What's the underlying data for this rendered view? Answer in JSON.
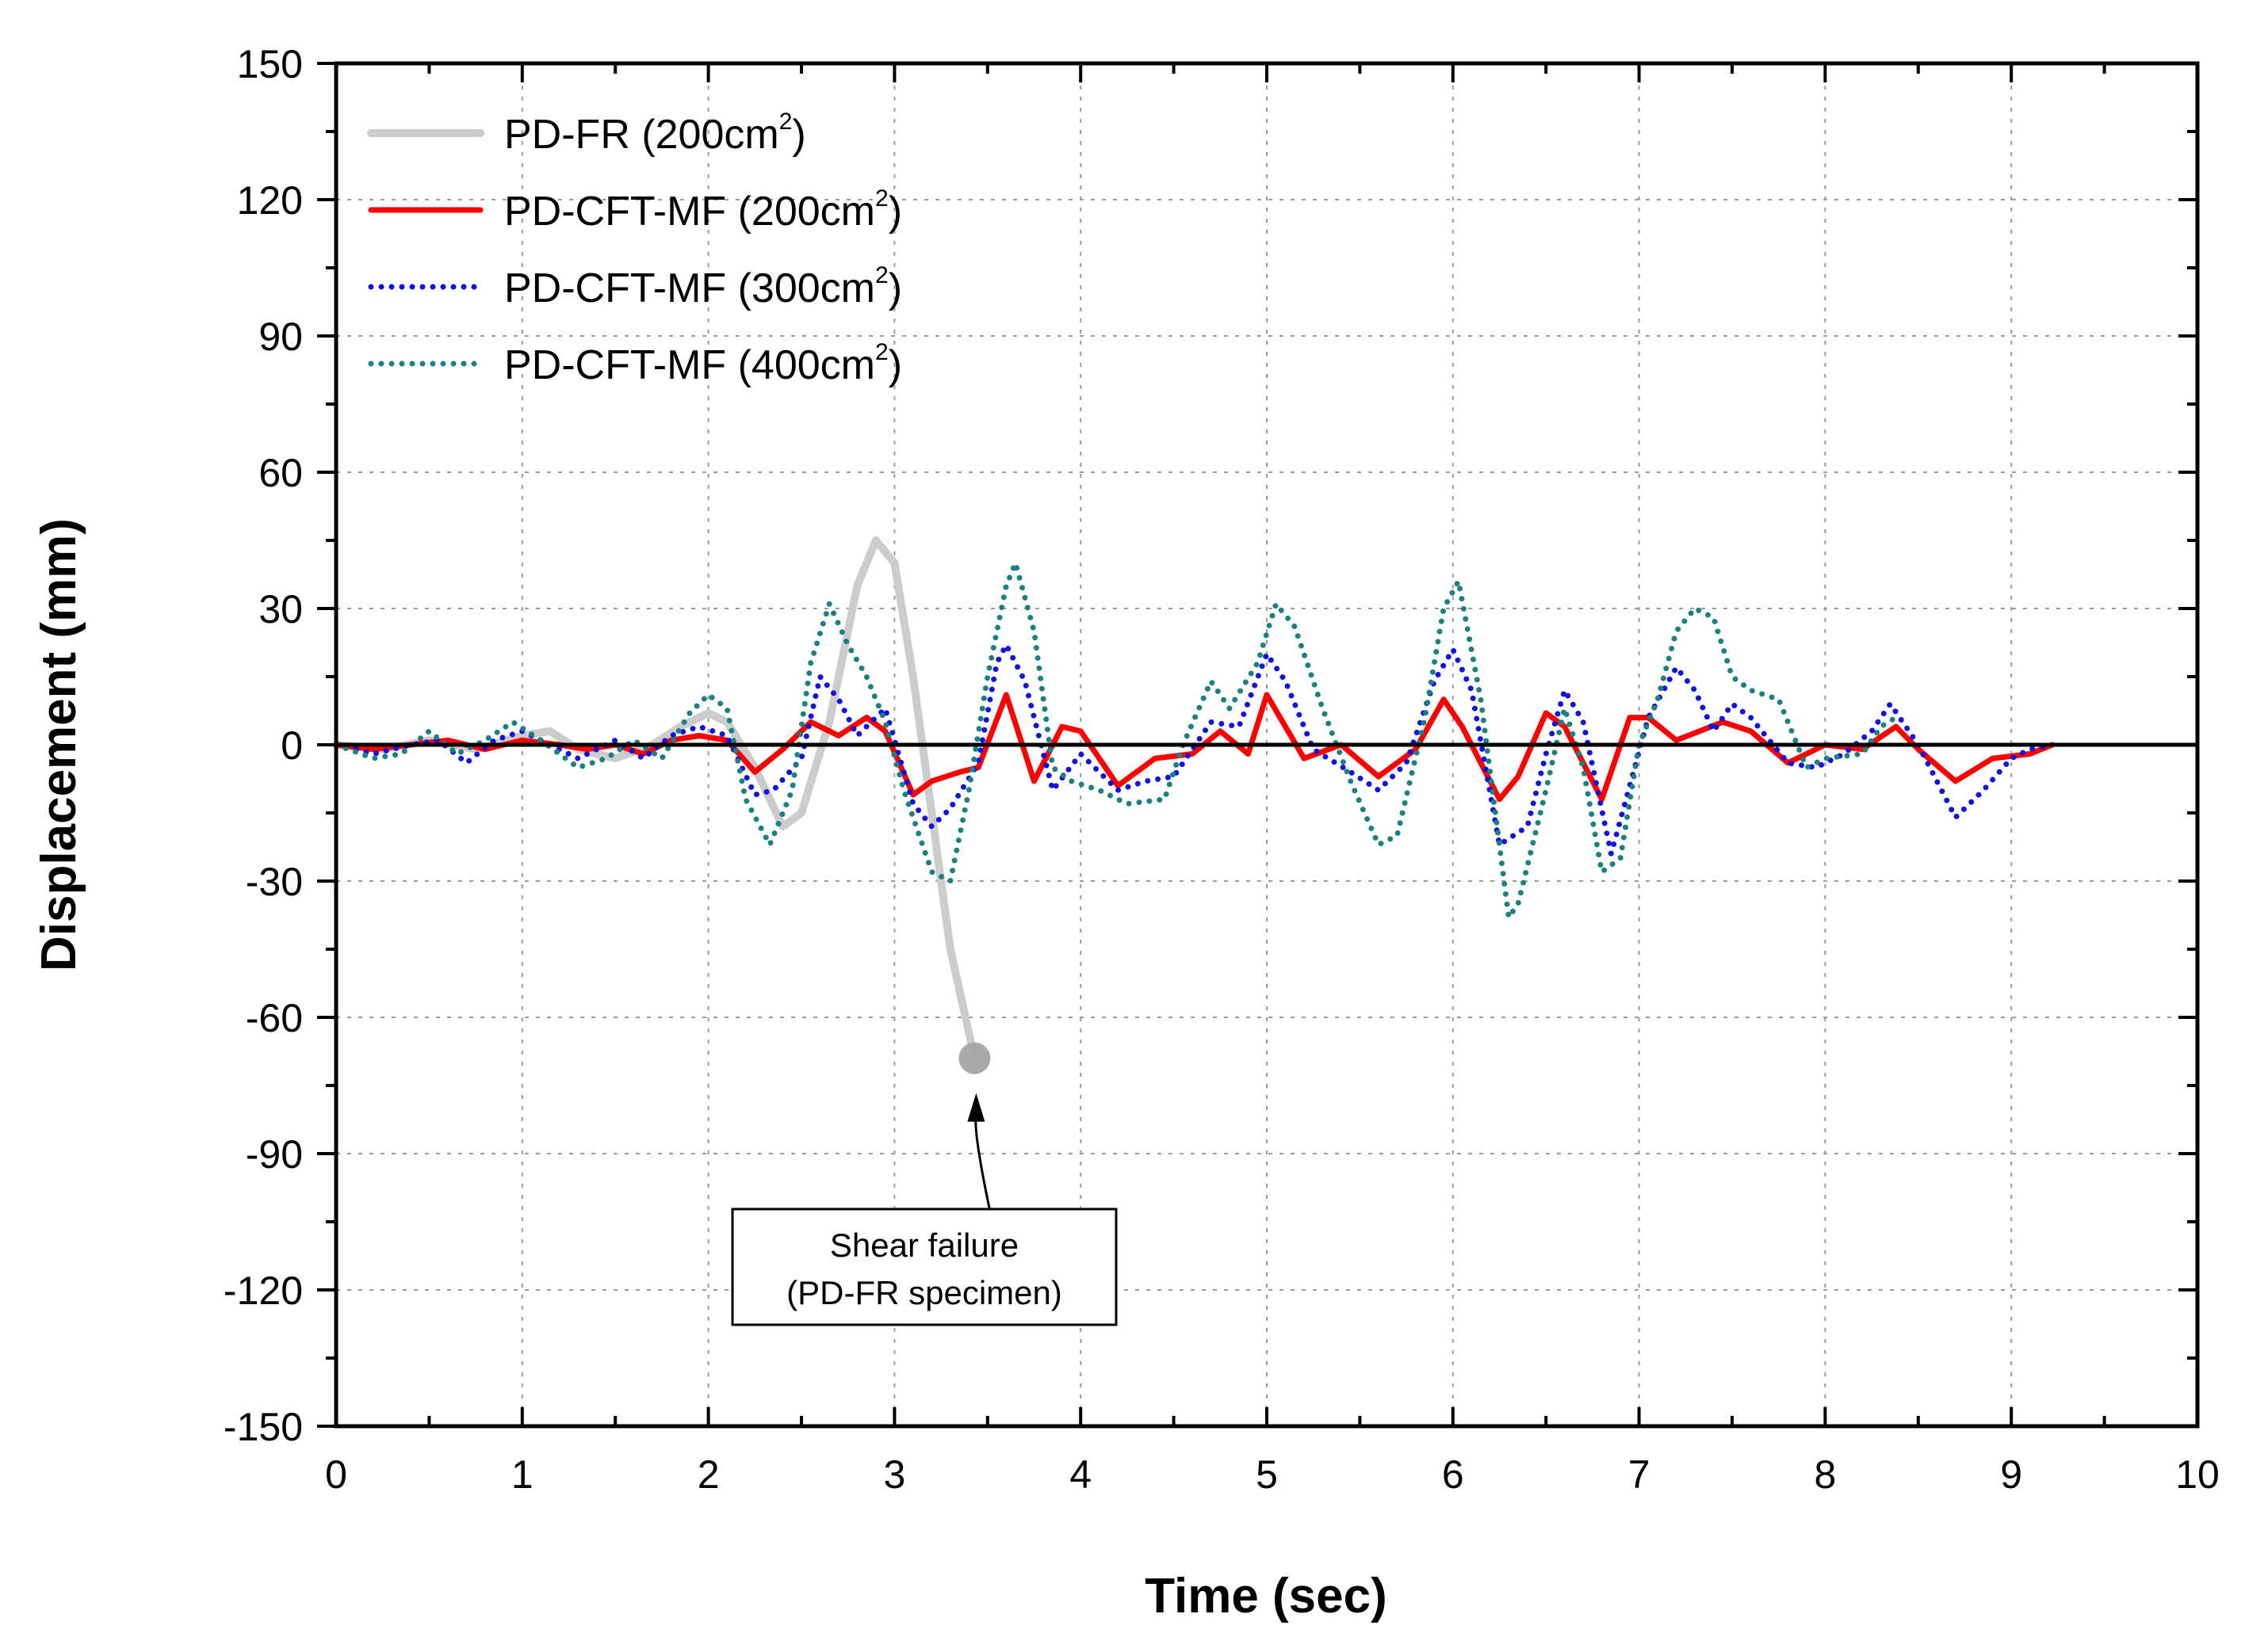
{
  "chart_data": {
    "type": "line",
    "title": "",
    "xlabel": "Time (sec)",
    "ylabel": "Displacement (mm)",
    "xlim": [
      0,
      10
    ],
    "ylim": [
      -150,
      150
    ],
    "x_ticks": [
      "0",
      "1",
      "2",
      "3",
      "4",
      "5",
      "6",
      "7",
      "8",
      "9",
      "10"
    ],
    "y_ticks": [
      "150",
      "120",
      "90",
      "60",
      "30",
      "0",
      "-30",
      "-60",
      "-90",
      "-120",
      "-150"
    ],
    "grid": true,
    "legend_position": "top-left",
    "series": [
      {
        "name": "PD-FR (200cm",
        "name_sup": "2",
        "name_suffix": ")",
        "color": "#cccccc",
        "style": "solid",
        "points": [
          [
            0,
            0
          ],
          [
            0.25,
            -1
          ],
          [
            0.5,
            1
          ],
          [
            0.75,
            -1
          ],
          [
            1.0,
            2
          ],
          [
            1.15,
            3
          ],
          [
            1.3,
            -1
          ],
          [
            1.5,
            -3
          ],
          [
            1.7,
            0
          ],
          [
            1.85,
            4
          ],
          [
            2.0,
            7
          ],
          [
            2.1,
            5
          ],
          [
            2.25,
            -5
          ],
          [
            2.4,
            -18
          ],
          [
            2.5,
            -15
          ],
          [
            2.65,
            5
          ],
          [
            2.8,
            35
          ],
          [
            2.9,
            45
          ],
          [
            3.0,
            40
          ],
          [
            3.1,
            15
          ],
          [
            3.2,
            -15
          ],
          [
            3.3,
            -45
          ],
          [
            3.43,
            -69
          ]
        ]
      },
      {
        "name": "PD-CFT-MF (200cm",
        "name_sup": "2",
        "name_suffix": ")",
        "color": "#ff0000",
        "style": "solid",
        "points": [
          [
            0,
            0
          ],
          [
            0.2,
            -1
          ],
          [
            0.4,
            0
          ],
          [
            0.6,
            1
          ],
          [
            0.8,
            -1
          ],
          [
            1.0,
            1
          ],
          [
            1.2,
            0
          ],
          [
            1.35,
            -1
          ],
          [
            1.5,
            0
          ],
          [
            1.65,
            -2
          ],
          [
            1.8,
            1
          ],
          [
            1.95,
            2
          ],
          [
            2.1,
            1
          ],
          [
            2.25,
            -6
          ],
          [
            2.4,
            -1
          ],
          [
            2.55,
            5
          ],
          [
            2.7,
            2
          ],
          [
            2.85,
            6
          ],
          [
            2.95,
            3
          ],
          [
            3.1,
            -11
          ],
          [
            3.2,
            -8
          ],
          [
            3.35,
            -6
          ],
          [
            3.45,
            -5
          ],
          [
            3.6,
            11
          ],
          [
            3.75,
            -8
          ],
          [
            3.9,
            4
          ],
          [
            4.0,
            3
          ],
          [
            4.2,
            -9
          ],
          [
            4.4,
            -3
          ],
          [
            4.6,
            -2
          ],
          [
            4.75,
            3
          ],
          [
            4.9,
            -2
          ],
          [
            5.0,
            11
          ],
          [
            5.2,
            -3
          ],
          [
            5.4,
            0
          ],
          [
            5.6,
            -7
          ],
          [
            5.8,
            -1
          ],
          [
            5.95,
            10
          ],
          [
            6.05,
            4
          ],
          [
            6.25,
            -12
          ],
          [
            6.35,
            -7
          ],
          [
            6.5,
            7
          ],
          [
            6.6,
            4
          ],
          [
            6.8,
            -12
          ],
          [
            6.95,
            6
          ],
          [
            7.05,
            6
          ],
          [
            7.2,
            1
          ],
          [
            7.45,
            5
          ],
          [
            7.6,
            3
          ],
          [
            7.8,
            -4
          ],
          [
            8.0,
            0
          ],
          [
            8.2,
            -1
          ],
          [
            8.38,
            4
          ],
          [
            8.5,
            -1
          ],
          [
            8.7,
            -8
          ],
          [
            8.9,
            -3
          ],
          [
            9.1,
            -2
          ],
          [
            9.22,
            0
          ]
        ]
      },
      {
        "name": "PD-CFT-MF (300cm",
        "name_sup": "2",
        "name_suffix": ")",
        "color": "#1010e0",
        "style": "dotted",
        "points": [
          [
            0,
            0
          ],
          [
            0.2,
            -2
          ],
          [
            0.4,
            0
          ],
          [
            0.55,
            1
          ],
          [
            0.7,
            -4
          ],
          [
            0.85,
            1
          ],
          [
            1.0,
            3
          ],
          [
            1.15,
            0
          ],
          [
            1.3,
            -3
          ],
          [
            1.5,
            1
          ],
          [
            1.65,
            -3
          ],
          [
            1.8,
            2
          ],
          [
            1.95,
            4
          ],
          [
            2.1,
            2
          ],
          [
            2.25,
            -11
          ],
          [
            2.35,
            -10
          ],
          [
            2.5,
            -3
          ],
          [
            2.6,
            15
          ],
          [
            2.7,
            10
          ],
          [
            2.8,
            2
          ],
          [
            2.95,
            8
          ],
          [
            3.1,
            -13
          ],
          [
            3.2,
            -18
          ],
          [
            3.3,
            -14
          ],
          [
            3.45,
            -4
          ],
          [
            3.55,
            18
          ],
          [
            3.6,
            22
          ],
          [
            3.7,
            14
          ],
          [
            3.85,
            -10
          ],
          [
            4.0,
            -2
          ],
          [
            4.2,
            -10
          ],
          [
            4.35,
            -8
          ],
          [
            4.5,
            -7
          ],
          [
            4.7,
            5
          ],
          [
            4.85,
            4
          ],
          [
            5.0,
            20
          ],
          [
            5.1,
            14
          ],
          [
            5.25,
            -1
          ],
          [
            5.45,
            -6
          ],
          [
            5.6,
            -10
          ],
          [
            5.75,
            -4
          ],
          [
            5.9,
            14
          ],
          [
            6.0,
            21
          ],
          [
            6.1,
            12
          ],
          [
            6.25,
            -22
          ],
          [
            6.4,
            -18
          ],
          [
            6.5,
            -2
          ],
          [
            6.6,
            12
          ],
          [
            6.7,
            5
          ],
          [
            6.85,
            -24
          ],
          [
            6.95,
            -9
          ],
          [
            7.05,
            6
          ],
          [
            7.2,
            17
          ],
          [
            7.3,
            12
          ],
          [
            7.4,
            3
          ],
          [
            7.5,
            9
          ],
          [
            7.6,
            6
          ],
          [
            7.8,
            -4
          ],
          [
            7.95,
            -5
          ],
          [
            8.1,
            -2
          ],
          [
            8.25,
            3
          ],
          [
            8.35,
            9
          ],
          [
            8.5,
            0
          ],
          [
            8.7,
            -16
          ],
          [
            8.85,
            -10
          ],
          [
            9.0,
            -3
          ],
          [
            9.1,
            -1
          ],
          [
            9.22,
            0
          ]
        ]
      },
      {
        "name": "PD-CFT-MF (400cm",
        "name_sup": "2",
        "name_suffix": ")",
        "color": "#1a8080",
        "style": "dotted",
        "points": [
          [
            0,
            0
          ],
          [
            0.2,
            -3
          ],
          [
            0.35,
            -2
          ],
          [
            0.5,
            3
          ],
          [
            0.65,
            -2
          ],
          [
            0.8,
            1
          ],
          [
            0.95,
            5
          ],
          [
            1.1,
            1
          ],
          [
            1.3,
            -5
          ],
          [
            1.45,
            -3
          ],
          [
            1.6,
            1
          ],
          [
            1.75,
            -3
          ],
          [
            1.9,
            7
          ],
          [
            2.0,
            11
          ],
          [
            2.1,
            8
          ],
          [
            2.2,
            -12
          ],
          [
            2.33,
            -22
          ],
          [
            2.45,
            -10
          ],
          [
            2.55,
            18
          ],
          [
            2.65,
            31
          ],
          [
            2.75,
            22
          ],
          [
            2.85,
            15
          ],
          [
            2.95,
            5
          ],
          [
            3.05,
            -10
          ],
          [
            3.2,
            -28
          ],
          [
            3.3,
            -30
          ],
          [
            3.4,
            -10
          ],
          [
            3.5,
            15
          ],
          [
            3.6,
            35
          ],
          [
            3.65,
            40
          ],
          [
            3.75,
            25
          ],
          [
            3.85,
            -5
          ],
          [
            3.95,
            -8
          ],
          [
            4.1,
            -10
          ],
          [
            4.25,
            -13
          ],
          [
            4.45,
            -12
          ],
          [
            4.55,
            0
          ],
          [
            4.7,
            14
          ],
          [
            4.8,
            8
          ],
          [
            4.95,
            18
          ],
          [
            5.05,
            31
          ],
          [
            5.15,
            26
          ],
          [
            5.3,
            8
          ],
          [
            5.45,
            -8
          ],
          [
            5.6,
            -22
          ],
          [
            5.7,
            -20
          ],
          [
            5.85,
            6
          ],
          [
            5.95,
            30
          ],
          [
            6.03,
            36
          ],
          [
            6.15,
            10
          ],
          [
            6.3,
            -38
          ],
          [
            6.35,
            -35
          ],
          [
            6.5,
            -10
          ],
          [
            6.6,
            8
          ],
          [
            6.7,
            -5
          ],
          [
            6.8,
            -28
          ],
          [
            6.9,
            -25
          ],
          [
            7.0,
            0
          ],
          [
            7.1,
            10
          ],
          [
            7.2,
            25
          ],
          [
            7.3,
            30
          ],
          [
            7.4,
            28
          ],
          [
            7.5,
            15
          ],
          [
            7.6,
            12
          ],
          [
            7.75,
            10
          ],
          [
            7.9,
            -5
          ],
          [
            8.0,
            -3
          ],
          [
            8.2,
            -2
          ],
          [
            8.3,
            4
          ],
          [
            8.38,
            6
          ]
        ]
      }
    ],
    "annotation": {
      "line1": "Shear failure",
      "line2": "(PD-FR specimen)",
      "point": [
        3.43,
        -69
      ]
    }
  }
}
